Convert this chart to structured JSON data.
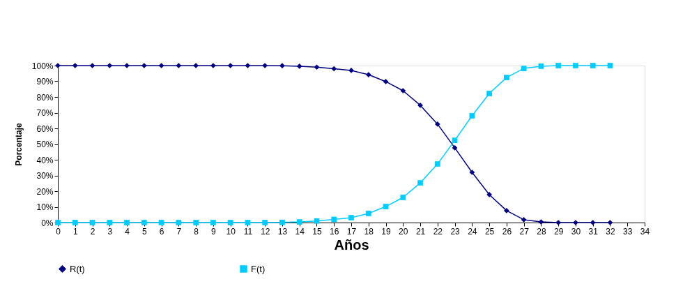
{
  "chart_data": {
    "type": "line",
    "xlabel": "Años",
    "ylabel": "Porcentaje",
    "x": [
      0,
      1,
      2,
      3,
      4,
      5,
      6,
      7,
      8,
      9,
      10,
      11,
      12,
      13,
      14,
      15,
      16,
      17,
      18,
      19,
      20,
      21,
      22,
      23,
      24,
      25,
      26,
      27,
      28,
      29,
      30,
      31,
      32
    ],
    "series": [
      {
        "name": "R(t)",
        "color": "#000080",
        "marker": "diamond",
        "values": [
          100,
          100,
          100,
          100,
          100,
          100,
          100,
          100,
          100,
          100,
          100,
          100,
          100,
          99.9,
          99.6,
          99,
          98,
          96.9,
          94.2,
          89.8,
          84,
          74.7,
          62.7,
          47.6,
          32,
          17.8,
          7.6,
          1.8,
          0.4,
          0,
          0,
          0,
          0
        ]
      },
      {
        "name": "F(t)",
        "color": "#00ccff",
        "marker": "square",
        "values": [
          0,
          0,
          0,
          0,
          0,
          0,
          0,
          0,
          0,
          0,
          0,
          0,
          0,
          0.1,
          0.4,
          1,
          2,
          3.1,
          5.8,
          10.2,
          16,
          25.3,
          37.3,
          52.4,
          68,
          82.2,
          92.4,
          98.2,
          99.6,
          100,
          100,
          100,
          100
        ]
      }
    ],
    "xlim": [
      0,
      34
    ],
    "xticks": [
      0,
      1,
      2,
      3,
      4,
      5,
      6,
      7,
      8,
      9,
      10,
      11,
      12,
      13,
      14,
      15,
      16,
      17,
      18,
      19,
      20,
      21,
      22,
      23,
      24,
      25,
      26,
      27,
      28,
      29,
      30,
      31,
      32,
      33,
      34
    ],
    "ylim": [
      0,
      100
    ],
    "yticks": [
      {
        "value": 0,
        "label": "0%"
      },
      {
        "value": 10,
        "label": "10%"
      },
      {
        "value": 20,
        "label": "20%"
      },
      {
        "value": 30,
        "label": "30%"
      },
      {
        "value": 40,
        "label": "40%"
      },
      {
        "value": 50,
        "label": "50%"
      },
      {
        "value": 60,
        "label": "60%"
      },
      {
        "value": 70,
        "label": "70%"
      },
      {
        "value": 80,
        "label": "80%"
      },
      {
        "value": 90,
        "label": "90%"
      },
      {
        "value": 100,
        "label": "100%"
      }
    ],
    "grid": false,
    "legend": "bottom",
    "line_style": "solid"
  }
}
